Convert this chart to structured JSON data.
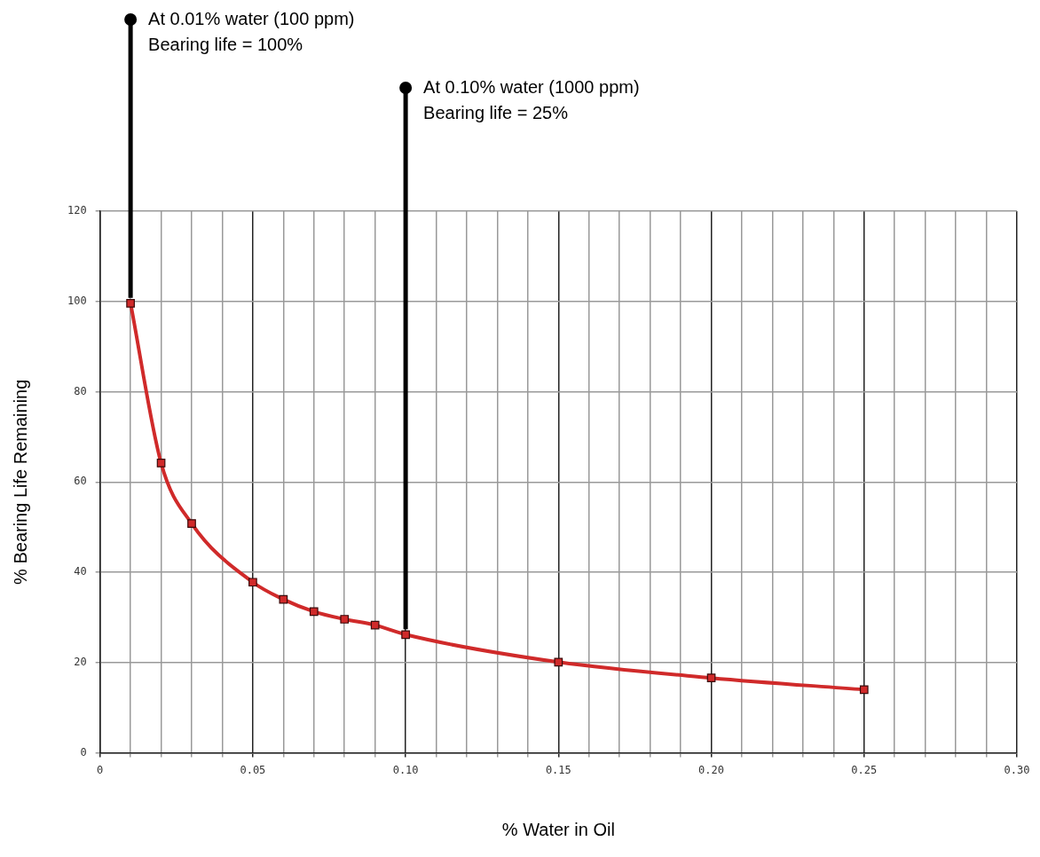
{
  "chart_data": {
    "type": "line",
    "xlabel": "% Water in Oil",
    "ylabel": "% Bearing Life Remaining",
    "x": [
      0.01,
      0.02,
      0.03,
      0.05,
      0.06,
      0.07,
      0.08,
      0.09,
      0.1,
      0.15,
      0.2,
      0.25
    ],
    "series": [
      {
        "color": "#d02a2a",
        "values": [
          99.6,
          64.2,
          50.8,
          37.8,
          34,
          31.3,
          29.6,
          28.3,
          26.2,
          20.1,
          16.6,
          14.0
        ]
      }
    ],
    "xlim": [
      0,
      0.3
    ],
    "xticks": [
      0,
      {
        "value": 0.01,
        "label": null
      },
      {
        "value": 0.02,
        "label": null
      },
      {
        "value": 0.03,
        "label": null
      },
      {
        "value": 0.04,
        "label": null
      },
      {
        "value": 0.05,
        "label": "0.05"
      },
      {
        "value": 0.06,
        "label": null
      },
      {
        "value": 0.07,
        "label": null
      },
      {
        "value": 0.08,
        "label": null
      },
      {
        "value": 0.09,
        "label": null
      },
      {
        "value": 0.1,
        "label": "0.10"
      },
      {
        "value": 0.11,
        "label": null
      },
      {
        "value": 0.12,
        "label": null
      },
      {
        "value": 0.13,
        "label": null
      },
      {
        "value": 0.14,
        "label": null
      },
      {
        "value": 0.15,
        "label": "0.15"
      },
      {
        "value": 0.16,
        "label": null
      },
      {
        "value": 0.17,
        "label": null
      },
      {
        "value": 0.18,
        "label": null
      },
      {
        "value": 0.19,
        "label": null
      },
      {
        "value": 0.2,
        "label": "0.20"
      },
      {
        "value": 0.21,
        "label": null
      },
      {
        "value": 0.22,
        "label": null
      },
      {
        "value": 0.23,
        "label": null
      },
      {
        "value": 0.24,
        "label": null
      },
      {
        "value": 0.25,
        "label": "0.25"
      },
      {
        "value": 0.26,
        "label": null
      },
      {
        "value": 0.27,
        "label": null
      },
      {
        "value": 0.28,
        "label": null
      },
      {
        "value": 0.29,
        "label": null
      },
      {
        "value": 0.3,
        "label": "0.30"
      }
    ],
    "ylim": [
      0,
      120
    ],
    "yticks": [
      0,
      20,
      40,
      60,
      80,
      100,
      120
    ],
    "grid": true,
    "legend": false,
    "marker": "square",
    "line_style": "solid",
    "annotations": [
      {
        "text": "At 0.01% water (100 ppm)\nBearing life = 100%",
        "x": 0.01,
        "y": 99.6
      },
      {
        "text": "At 0.10% water (1000 ppm)\nBearing life = 25%",
        "x": 0.1,
        "y": 26.2
      }
    ]
  }
}
